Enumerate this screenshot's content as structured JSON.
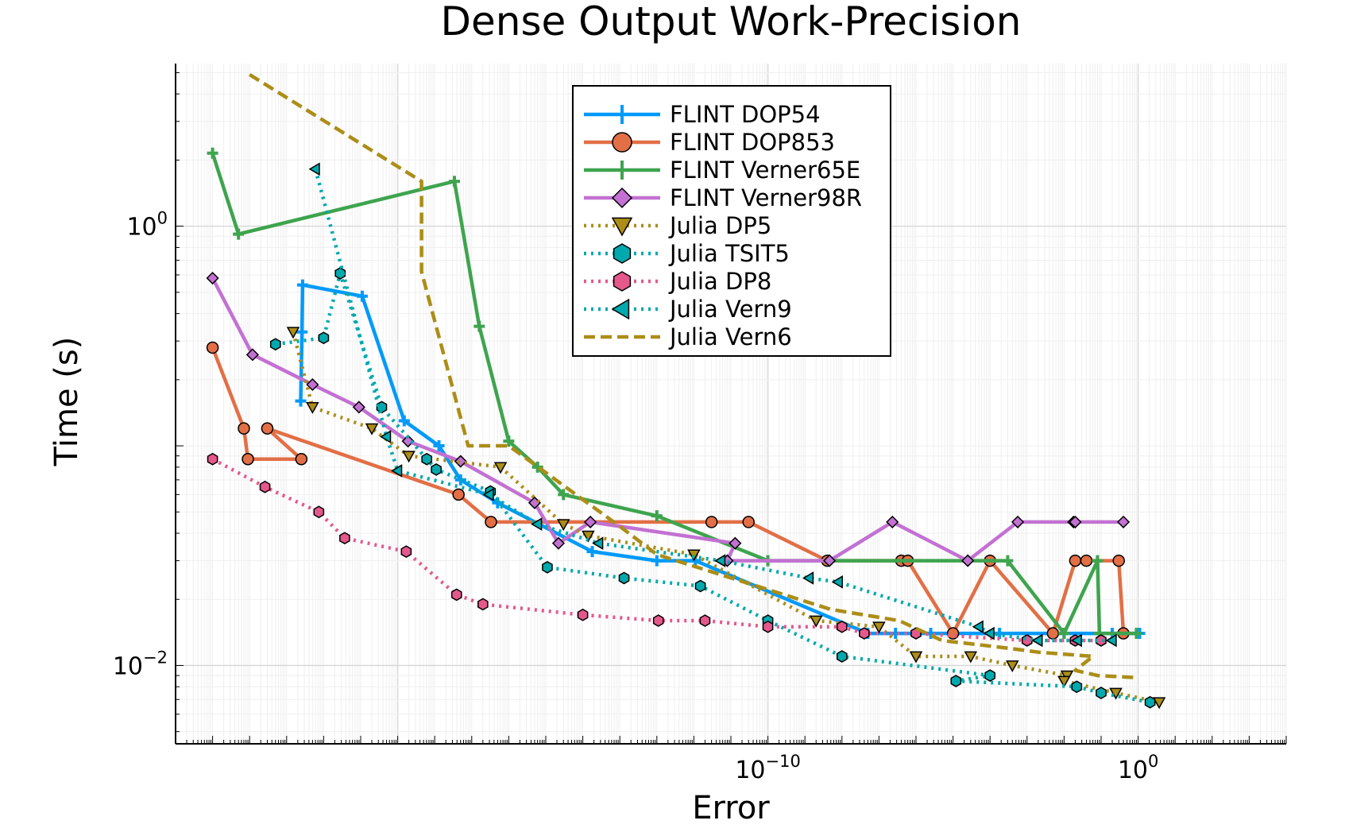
{
  "chart_data": {
    "type": "line",
    "title": "Dense Output Work-Precision",
    "xlabel": "Error",
    "ylabel": "Time (s)",
    "xscale": "log10",
    "yscale": "log10",
    "xlim": [
      1e-26,
      10000.0
    ],
    "ylim": [
      0.0044,
      5.5
    ],
    "xticks": [
      {
        "value": 1e-10,
        "base": "10",
        "exp": "−10"
      },
      {
        "value": 1,
        "base": "10",
        "exp": "0"
      }
    ],
    "yticks": [
      {
        "value": 1,
        "base": "10",
        "exp": "0"
      },
      {
        "value": 0.01,
        "base": "10",
        "exp": "−2"
      }
    ],
    "grid": true,
    "legend_position": "top-center",
    "series": [
      {
        "name": "FLINT DOP54",
        "color": "#009AF9",
        "line": "solid",
        "marker": "plus",
        "x": [
          2.4e-23,
          2.6e-23,
          2.7e-23,
          1.1e-21,
          1.5e-20,
          1.3e-19,
          5e-19,
          5e-18,
          1.8e-15,
          1e-13,
          1.1e-12,
          5e-08,
          2.8e-07,
          2.5e-06,
          0.00018,
          0.01,
          0.2,
          0.01,
          1.1
        ],
        "y": [
          0.16,
          0.33,
          0.54,
          0.48,
          0.13,
          0.1,
          0.07,
          0.055,
          0.033,
          0.03,
          0.03,
          0.014,
          0.014,
          0.014,
          0.014,
          0.014,
          0.014,
          0.014,
          0.014
        ]
      },
      {
        "name": "FLINT DOP853",
        "color": "#E26F46",
        "line": "solid",
        "marker": "circle",
        "x": [
          1e-25,
          7e-25,
          9e-25,
          2.5e-23,
          3e-24,
          4.4e-19,
          3.3e-18,
          3e-12,
          3e-11,
          4e-09,
          4e-07,
          6e-07,
          1e-05,
          0.0001,
          0.005,
          0.02,
          0.04,
          0.3,
          0.4
        ],
        "y": [
          0.28,
          0.12,
          0.087,
          0.087,
          0.12,
          0.06,
          0.045,
          0.045,
          0.045,
          0.03,
          0.03,
          0.03,
          0.014,
          0.03,
          0.014,
          0.03,
          0.03,
          0.03,
          0.014
        ]
      },
      {
        "name": "FLINT Verner65E",
        "color": "#3EA44E",
        "line": "solid",
        "marker": "plus",
        "x": [
          1e-25,
          5e-25,
          3.4e-19,
          1.6e-18,
          1e-17,
          6e-17,
          3e-16,
          1e-13,
          1e-10,
          0.0003,
          0.01,
          0.08,
          0.09,
          0.9
        ],
        "y": [
          2.15,
          0.92,
          1.6,
          0.35,
          0.105,
          0.08,
          0.06,
          0.048,
          0.03,
          0.03,
          0.014,
          0.03,
          0.014,
          0.014
        ]
      },
      {
        "name": "FLINT Verner98R",
        "color": "#C271D2",
        "line": "solid",
        "marker": "diamond",
        "x": [
          1e-25,
          1.2e-24,
          5e-23,
          9e-22,
          1.9e-20,
          5e-19,
          5e-17,
          2.2e-16,
          1.6e-15,
          1.3e-11,
          8e-12,
          4.6e-09,
          2.3e-07,
          2.5e-05,
          0.00056,
          0.018,
          0.02,
          0.4
        ],
        "y": [
          0.58,
          0.26,
          0.19,
          0.15,
          0.105,
          0.085,
          0.055,
          0.036,
          0.045,
          0.036,
          0.03,
          0.03,
          0.045,
          0.03,
          0.045,
          0.045,
          0.045,
          0.045
        ]
      },
      {
        "name": "Julia DP5",
        "color": "#AC8D18",
        "line": "dotted",
        "marker": "triangle-down",
        "x": [
          1.5e-23,
          5e-23,
          2e-21,
          2e-20,
          6e-18,
          3e-16,
          1.4e-15,
          1e-12,
          2e-09,
          1e-07,
          1e-06,
          3e-05,
          0.0004,
          0.012,
          0.01,
          0.25,
          3.7
        ],
        "y": [
          0.33,
          0.15,
          0.12,
          0.09,
          0.08,
          0.044,
          0.039,
          0.032,
          0.016,
          0.015,
          0.011,
          0.011,
          0.01,
          0.009,
          0.0085,
          0.0075,
          0.0068
        ]
      },
      {
        "name": "Julia TSIT5",
        "color": "#00A9AD",
        "line": "dotted",
        "marker": "hexagon",
        "x": [
          5e-24,
          1e-22,
          2.8e-22,
          3.7e-21,
          6.1e-20,
          1.1e-19,
          3.2e-18,
          1.1e-16,
          1.3e-14,
          1.5e-12,
          1e-10,
          1e-08,
          0.0001,
          1.2e-05,
          0.022,
          0.1,
          2.1
        ],
        "y": [
          0.29,
          0.31,
          0.61,
          0.15,
          0.087,
          0.078,
          0.062,
          0.028,
          0.025,
          0.023,
          0.016,
          0.011,
          0.009,
          0.0085,
          0.008,
          0.0075,
          0.0068
        ]
      },
      {
        "name": "Julia DP8",
        "color": "#E4588C",
        "line": "dotted",
        "marker": "hexagon",
        "x": [
          1e-25,
          2.6e-24,
          7.4e-23,
          3.7e-22,
          1.7e-20,
          3.9e-19,
          2e-18,
          1e-15,
          1.1e-13,
          2e-12,
          1e-10,
          1e-08,
          4e-08,
          1e-06,
          0.001,
          0.02,
          0.1
        ],
        "y": [
          0.087,
          0.065,
          0.05,
          0.038,
          0.033,
          0.021,
          0.019,
          0.017,
          0.016,
          0.016,
          0.015,
          0.015,
          0.014,
          0.014,
          0.013,
          0.013,
          0.013
        ]
      },
      {
        "name": "Julia Vern9",
        "color": "#00A9AD",
        "line": "dotted",
        "marker": "triangle-left",
        "x": [
          6e-23,
          5e-21,
          1e-20,
          3e-18,
          6e-17,
          2.7e-15,
          5.4e-12,
          1.3e-09,
          8e-09,
          5e-05,
          0.0001,
          0.002,
          0.023,
          0.2
        ],
        "y": [
          1.82,
          0.11,
          0.077,
          0.06,
          0.044,
          0.036,
          0.03,
          0.025,
          0.024,
          0.015,
          0.014,
          0.013,
          0.013,
          0.013
        ]
      },
      {
        "name": "Julia Vern6",
        "color": "#AC8D18",
        "line": "dashed",
        "marker": "none",
        "x": [
          1e-24,
          4.4e-20,
          4.4e-20,
          4.4e-20,
          8e-19,
          1e-17,
          1e-14,
          1e-13,
          5e-09,
          3.5e-07,
          5e-06,
          0.0003,
          0.002,
          0.06,
          0.02,
          0.08,
          1.0
        ],
        "y": [
          4.9,
          1.6,
          0.62,
          0.62,
          0.1,
          0.1,
          0.043,
          0.032,
          0.018,
          0.016,
          0.013,
          0.012,
          0.0115,
          0.011,
          0.0095,
          0.009,
          0.0088
        ]
      }
    ]
  }
}
